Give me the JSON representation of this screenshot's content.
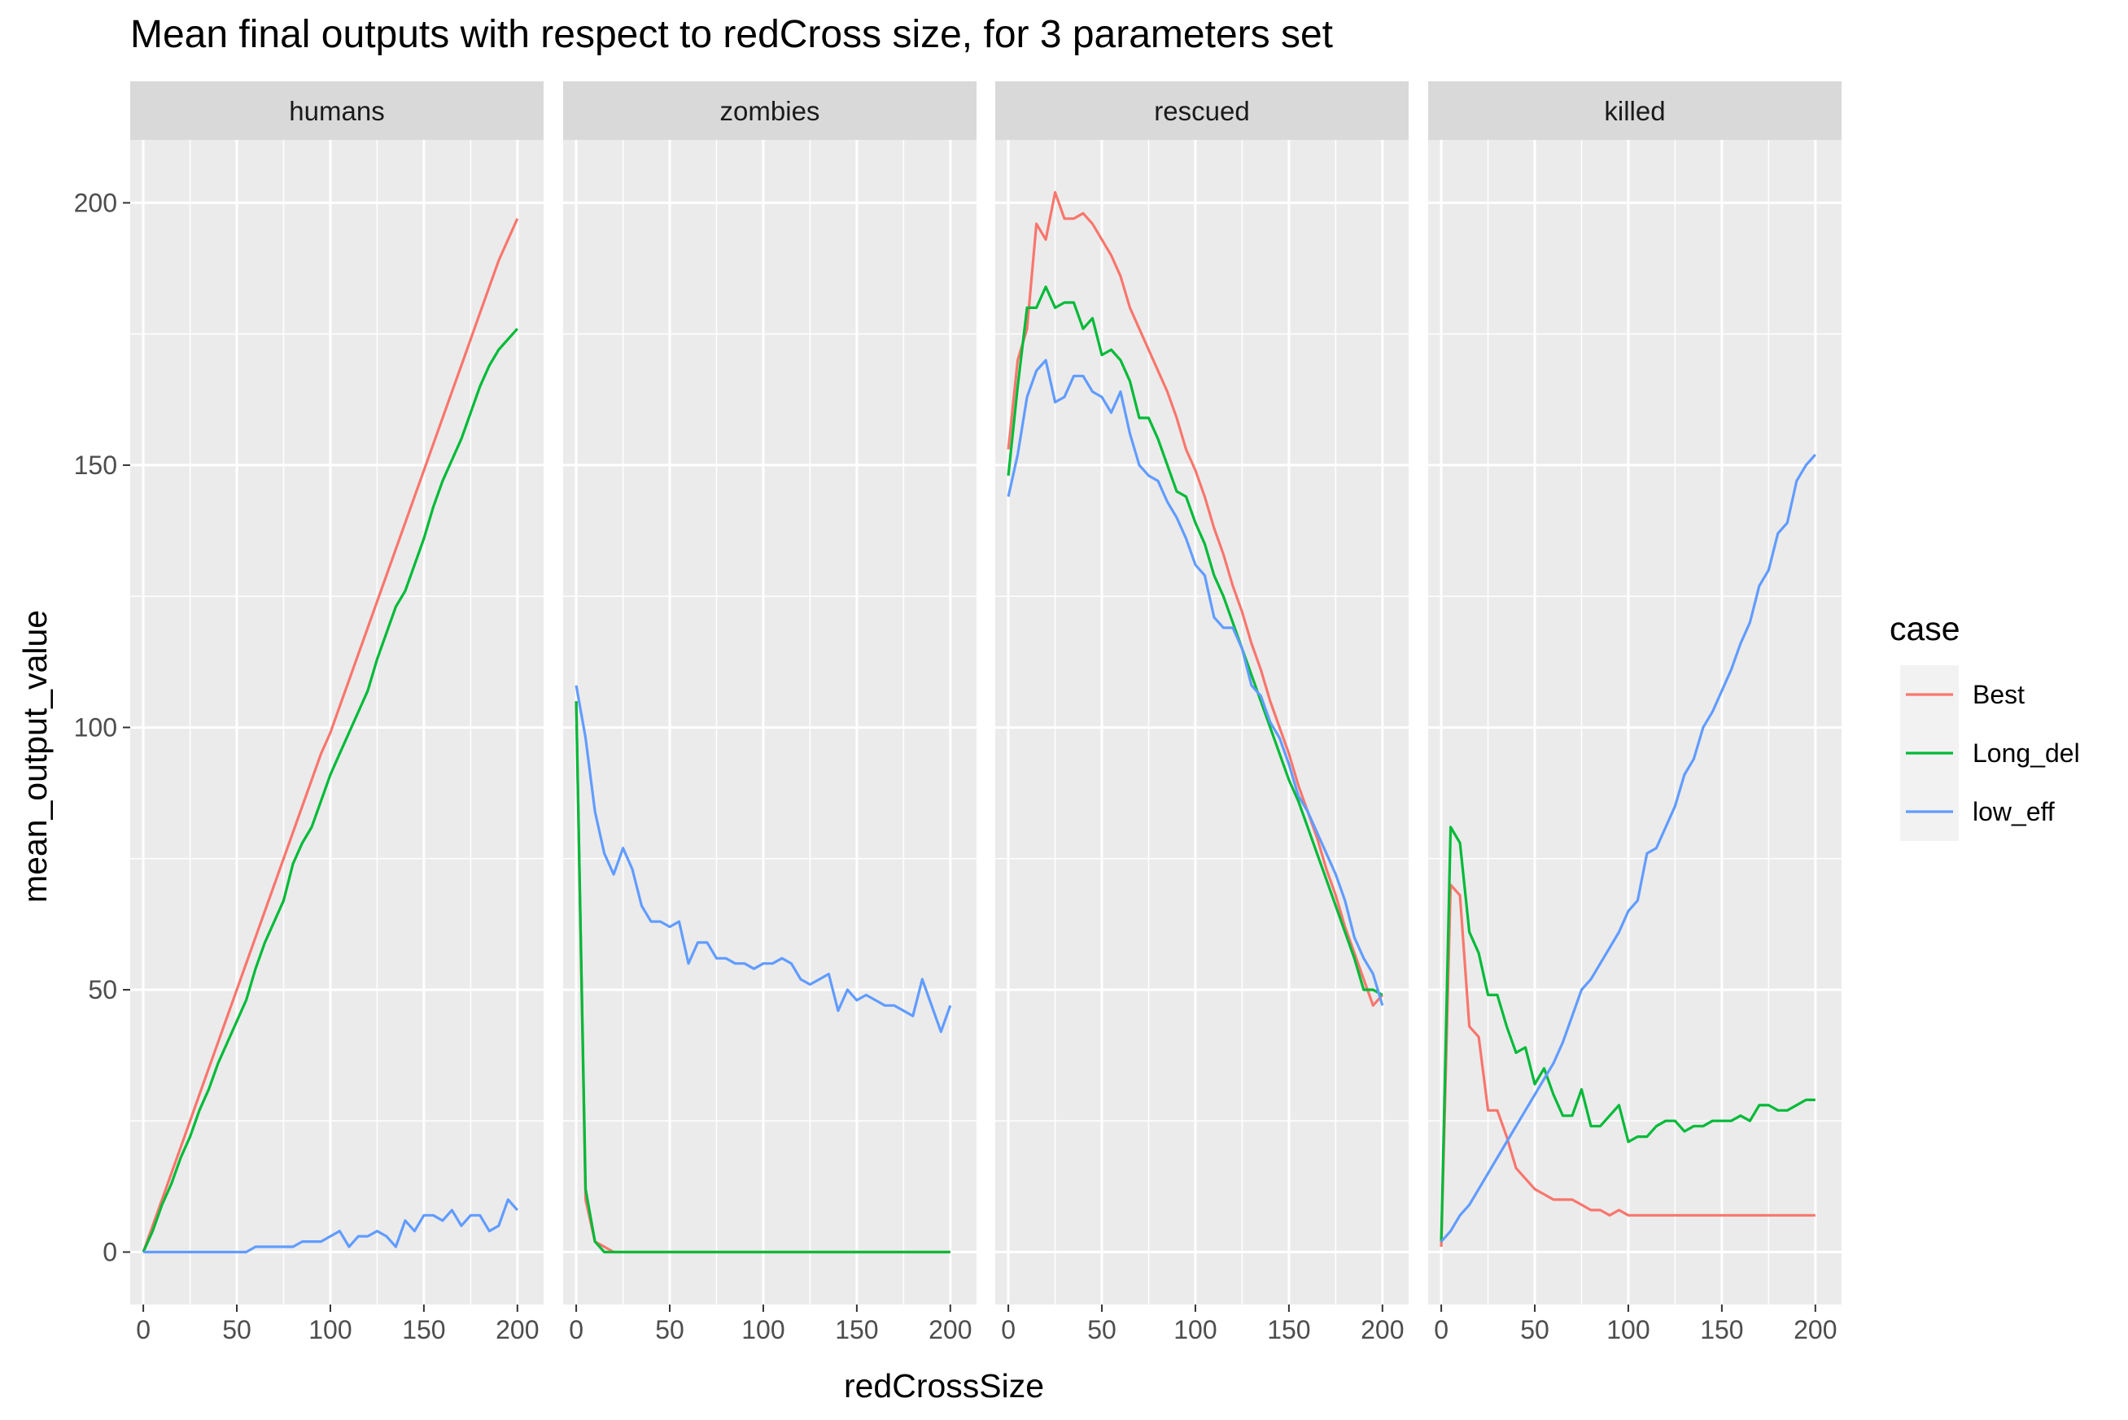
{
  "chart_data": {
    "type": "line",
    "title": "Mean final outputs with respect to redCross size, for 3 parameters set",
    "xlabel": "redCrossSize",
    "ylabel": "mean_output_value",
    "xlim": [
      -7,
      214
    ],
    "ylim": [
      -10,
      212
    ],
    "x_ticks": [
      0,
      50,
      100,
      150,
      200
    ],
    "y_ticks": [
      0,
      50,
      100,
      150,
      200
    ],
    "grid": true,
    "legend": {
      "title": "case",
      "position": "right"
    },
    "colors": {
      "Best": "#F8766D",
      "Long_del": "#00BA38",
      "low_eff": "#619CFF"
    },
    "x": [
      0,
      5,
      10,
      15,
      20,
      25,
      30,
      35,
      40,
      45,
      50,
      55,
      60,
      65,
      70,
      75,
      80,
      85,
      90,
      95,
      100,
      105,
      110,
      115,
      120,
      125,
      130,
      135,
      140,
      145,
      150,
      155,
      160,
      165,
      170,
      175,
      180,
      185,
      190,
      195,
      200
    ],
    "panels": [
      {
        "name": "humans",
        "series": [
          {
            "name": "Best",
            "values": [
              0,
              5,
              10,
              15,
              20,
              25,
              30,
              35,
              40,
              45,
              50,
              55,
              60,
              65,
              70,
              75,
              80,
              85,
              90,
              95,
              99,
              104,
              109,
              114,
              119,
              124,
              129,
              134,
              139,
              144,
              149,
              154,
              159,
              164,
              169,
              174,
              179,
              184,
              189,
              193,
              197
            ]
          },
          {
            "name": "Long_del",
            "values": [
              0,
              4,
              9,
              13,
              18,
              22,
              27,
              31,
              36,
              40,
              44,
              48,
              54,
              59,
              63,
              67,
              74,
              78,
              81,
              86,
              91,
              95,
              99,
              103,
              107,
              113,
              118,
              123,
              126,
              131,
              136,
              142,
              147,
              151,
              155,
              160,
              165,
              169,
              172,
              174,
              176
            ]
          },
          {
            "name": "low_eff",
            "values": [
              0,
              0,
              0,
              0,
              0,
              0,
              0,
              0,
              0,
              0,
              0,
              0,
              1,
              1,
              1,
              1,
              1,
              2,
              2,
              2,
              3,
              4,
              1,
              3,
              3,
              4,
              3,
              1,
              6,
              4,
              7,
              7,
              6,
              8,
              5,
              7,
              7,
              4,
              5,
              10,
              8
            ]
          }
        ]
      },
      {
        "name": "zombies",
        "series": [
          {
            "name": "Best",
            "values": [
              105,
              10,
              2,
              1,
              0,
              0,
              0,
              0,
              0,
              0,
              0,
              0,
              0,
              0,
              0,
              0,
              0,
              0,
              0,
              0,
              0,
              0,
              0,
              0,
              0,
              0,
              0,
              0,
              0,
              0,
              0,
              0,
              0,
              0,
              0,
              0,
              0,
              0,
              0,
              0,
              0
            ]
          },
          {
            "name": "Long_del",
            "values": [
              105,
              12,
              2,
              0,
              0,
              0,
              0,
              0,
              0,
              0,
              0,
              0,
              0,
              0,
              0,
              0,
              0,
              0,
              0,
              0,
              0,
              0,
              0,
              0,
              0,
              0,
              0,
              0,
              0,
              0,
              0,
              0,
              0,
              0,
              0,
              0,
              0,
              0,
              0,
              0,
              0
            ]
          },
          {
            "name": "low_eff",
            "values": [
              108,
              98,
              84,
              76,
              72,
              77,
              73,
              66,
              63,
              63,
              62,
              63,
              55,
              59,
              59,
              56,
              56,
              55,
              55,
              54,
              55,
              55,
              56,
              55,
              52,
              51,
              52,
              53,
              46,
              50,
              48,
              49,
              48,
              47,
              47,
              46,
              45,
              52,
              47,
              42,
              47
            ]
          }
        ]
      },
      {
        "name": "rescued",
        "series": [
          {
            "name": "Best",
            "values": [
              153,
              170,
              176,
              196,
              193,
              202,
              197,
              197,
              198,
              196,
              193,
              190,
              186,
              180,
              176,
              172,
              168,
              164,
              159,
              153,
              149,
              144,
              138,
              133,
              127,
              122,
              116,
              111,
              105,
              100,
              95,
              89,
              84,
              79,
              73,
              68,
              62,
              57,
              52,
              47,
              49
            ]
          },
          {
            "name": "Long_del",
            "values": [
              148,
              165,
              180,
              180,
              184,
              180,
              181,
              181,
              176,
              178,
              171,
              172,
              170,
              166,
              159,
              159,
              155,
              150,
              145,
              144,
              139,
              135,
              129,
              125,
              120,
              115,
              110,
              105,
              100,
              95,
              90,
              86,
              81,
              76,
              71,
              66,
              61,
              56,
              50,
              50,
              49
            ]
          },
          {
            "name": "low_eff",
            "values": [
              144,
              152,
              163,
              168,
              170,
              162,
              163,
              167,
              167,
              164,
              163,
              160,
              164,
              156,
              150,
              148,
              147,
              143,
              140,
              136,
              131,
              129,
              121,
              119,
              119,
              115,
              108,
              106,
              101,
              98,
              93,
              87,
              84,
              80,
              76,
              72,
              67,
              60,
              56,
              53,
              47
            ]
          }
        ]
      },
      {
        "name": "killed",
        "series": [
          {
            "name": "Best",
            "values": [
              1,
              70,
              68,
              43,
              41,
              27,
              27,
              22,
              16,
              14,
              12,
              11,
              10,
              10,
              10,
              9,
              8,
              8,
              7,
              8,
              7,
              7,
              7,
              7,
              7,
              7,
              7,
              7,
              7,
              7,
              7,
              7,
              7,
              7,
              7,
              7,
              7,
              7,
              7,
              7,
              7
            ]
          },
          {
            "name": "Long_del",
            "values": [
              2,
              81,
              78,
              61,
              57,
              49,
              49,
              43,
              38,
              39,
              32,
              35,
              30,
              26,
              26,
              31,
              24,
              24,
              26,
              28,
              21,
              22,
              22,
              24,
              25,
              25,
              23,
              24,
              24,
              25,
              25,
              25,
              26,
              25,
              28,
              28,
              27,
              27,
              28,
              29,
              29
            ]
          },
          {
            "name": "low_eff",
            "values": [
              2,
              4,
              7,
              9,
              12,
              15,
              18,
              21,
              24,
              27,
              30,
              33,
              36,
              40,
              45,
              50,
              52,
              55,
              58,
              61,
              65,
              67,
              76,
              77,
              81,
              85,
              91,
              94,
              100,
              103,
              107,
              111,
              116,
              120,
              127,
              130,
              137,
              139,
              147,
              150,
              152
            ]
          }
        ]
      }
    ]
  }
}
